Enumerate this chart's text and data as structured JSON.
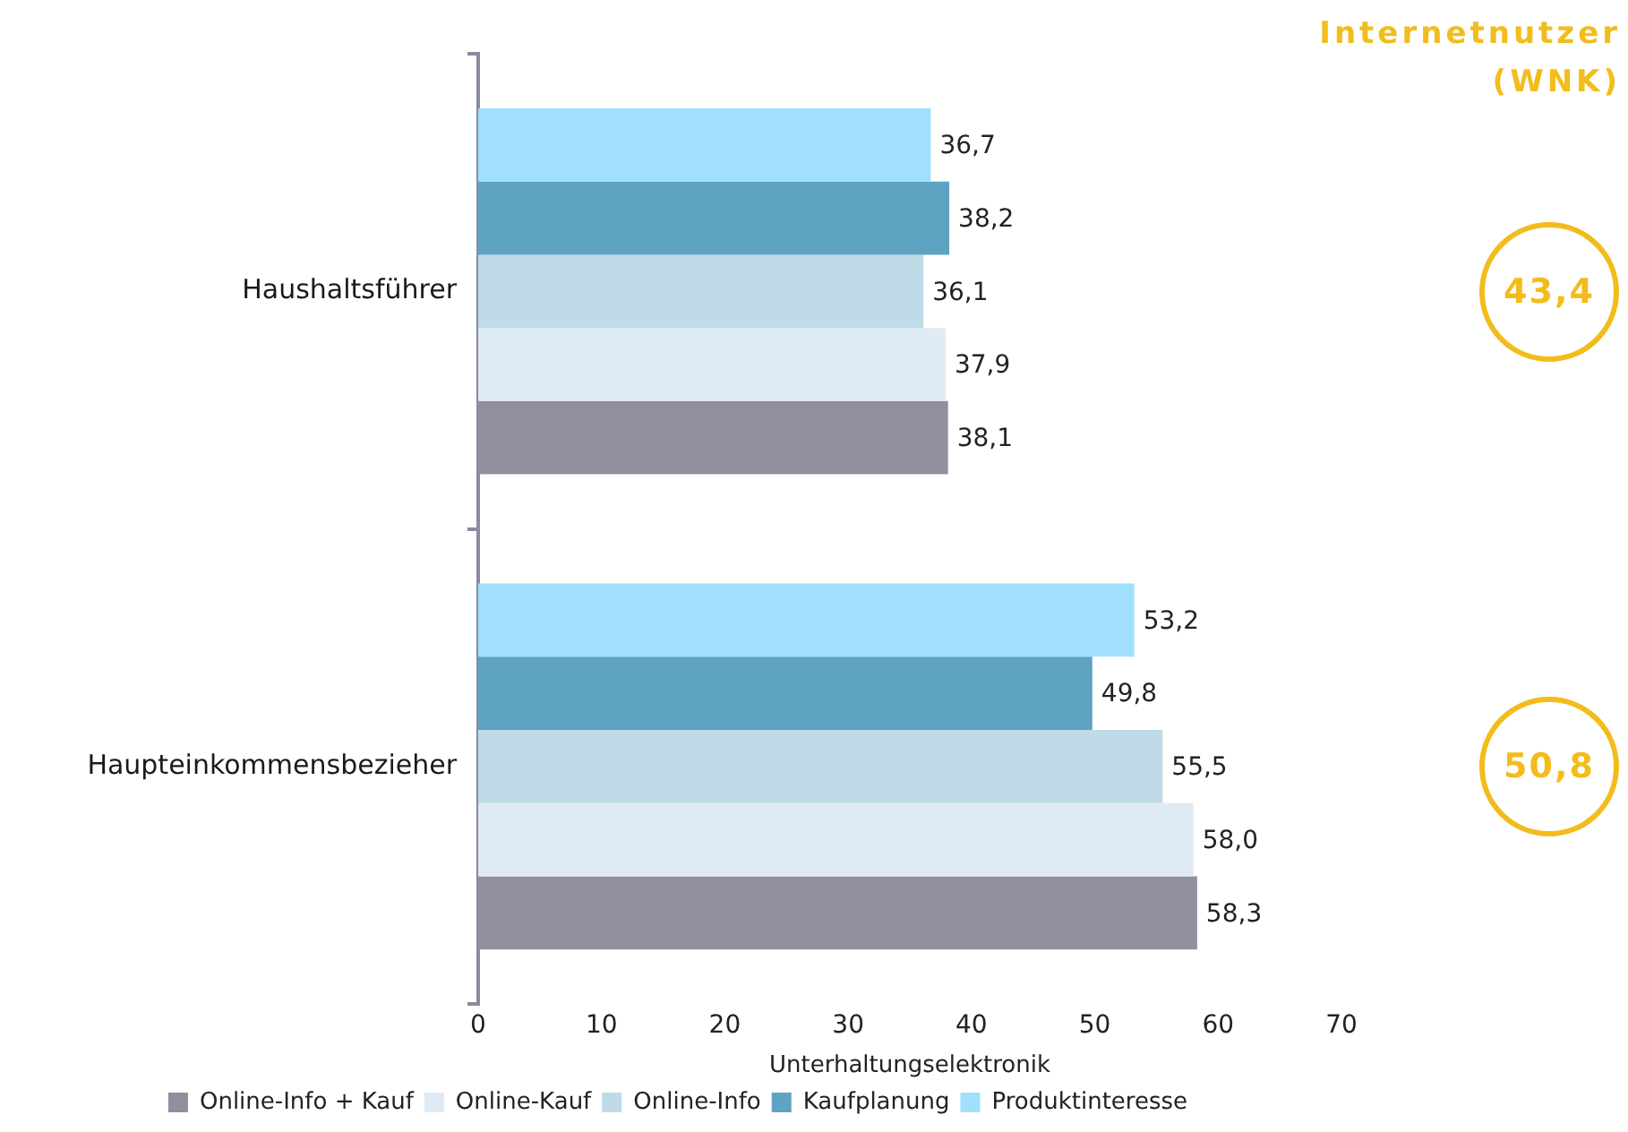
{
  "chart_data": {
    "type": "bar",
    "orientation": "horizontal",
    "categories": [
      "Haushaltsführer",
      "Haupteinkommensbezieher"
    ],
    "series": [
      {
        "name": "Online-Info + Kauf",
        "color": "#918f9e",
        "values": [
          38.1,
          58.3
        ],
        "value_labels": [
          "38,1",
          "58,3"
        ]
      },
      {
        "name": "Online-Kauf",
        "color": "#dfebf4",
        "values": [
          37.9,
          58.0
        ],
        "value_labels": [
          "37,9",
          "58,0"
        ]
      },
      {
        "name": "Online-Info",
        "color": "#bedbe7",
        "values": [
          36.1,
          55.5
        ],
        "value_labels": [
          "36,1",
          "55,5"
        ]
      },
      {
        "name": "Kaufplanung",
        "color": "#5ea3c2",
        "values": [
          38.2,
          49.8
        ],
        "value_labels": [
          "38,2",
          "49,8"
        ]
      },
      {
        "name": "Produktinteresse",
        "color": "#a0e0fc",
        "values": [
          36.7,
          53.2
        ],
        "value_labels": [
          "36,7",
          "53,2"
        ]
      }
    ],
    "xlabel": "Unterhaltungselektronik",
    "xlim": [
      0,
      70
    ],
    "xticks": [
      0,
      10,
      20,
      30,
      40,
      50,
      60,
      70
    ],
    "grid": false,
    "legend": "bottom",
    "annotations": [
      "Internetnutzer (WNK)",
      "43,4",
      "50,8"
    ]
  }
}
